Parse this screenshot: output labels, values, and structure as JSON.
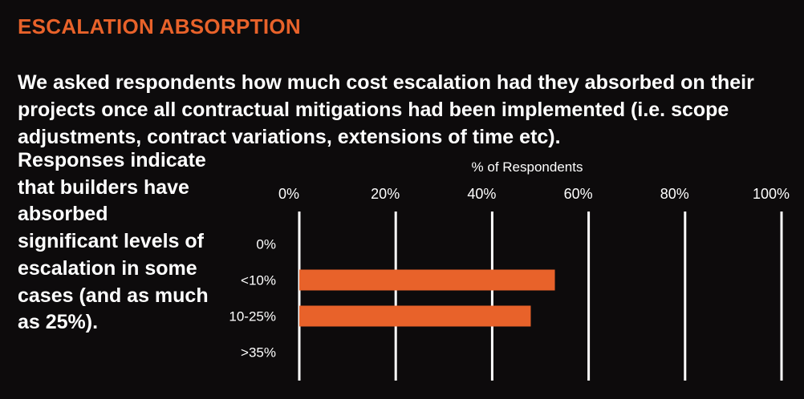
{
  "heading": "ESCALATION ABSORPTION",
  "intro": "We asked respondents how much cost escalation had they absorbed on their projects once all contractual mitigations had been implemented (i.e. scope adjustments, contract variations, extensions of time etc).",
  "side_text": "Responses indicate that builders have absorbed significant levels of escalation in some cases (and as much as 25%).",
  "colors": {
    "accent": "#e8622a",
    "background": "#0d0b0c",
    "text": "#ffffff"
  },
  "chart_data": {
    "type": "bar",
    "orientation": "horizontal",
    "title": "",
    "xlabel": "% of Respondents",
    "ylabel": "",
    "xlim": [
      0,
      100
    ],
    "x_ticks": [
      "0%",
      "20%",
      "40%",
      "60%",
      "80%",
      "100%"
    ],
    "categories": [
      "0%",
      "<10%",
      "10-25%",
      ">35%"
    ],
    "values": [
      0,
      53,
      48,
      0
    ],
    "grid": true,
    "axis_position": "top"
  }
}
